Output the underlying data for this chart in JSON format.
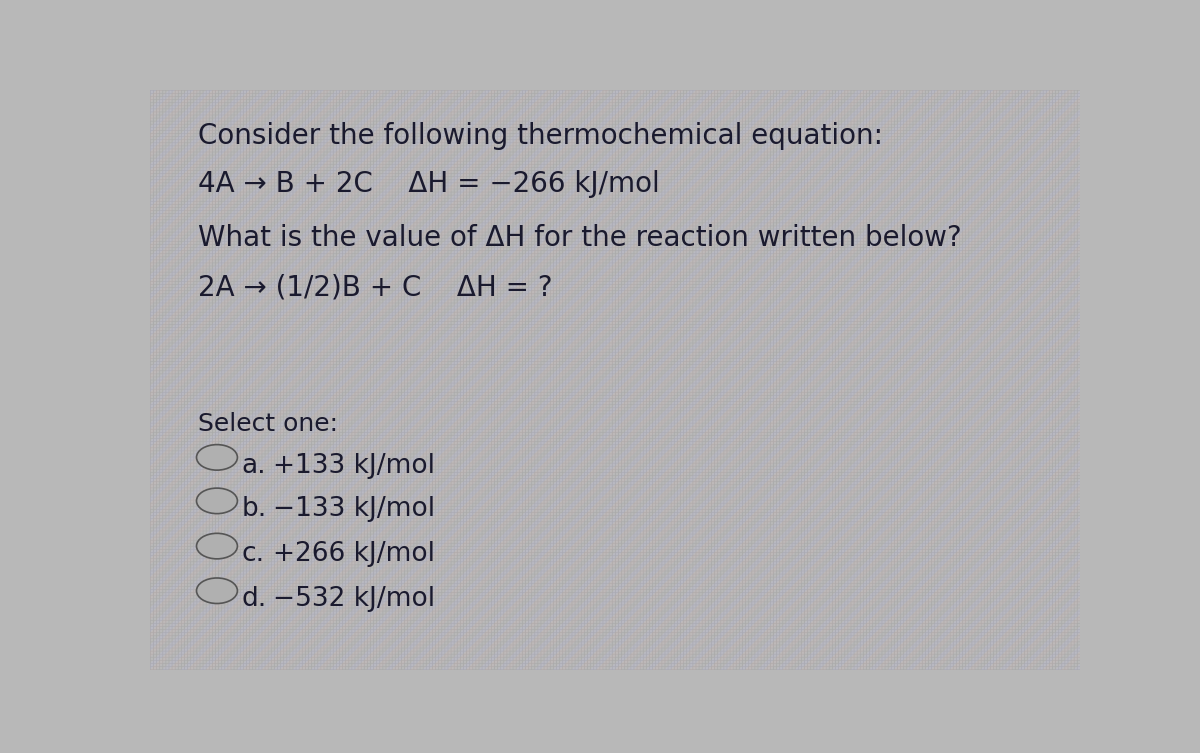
{
  "background_color": "#b8b8b8",
  "title_line": "Consider the following thermochemical equation:",
  "equation_line": "4A → B + 2C    ΔH = −266 kJ/mol",
  "question_line": "What is the value of ΔH for the reaction written below?",
  "reaction_line": "2A → (1/2)B + C    ΔH = ?",
  "select_label": "Select one:",
  "options": [
    "+133 kJ/mol",
    "−133 kJ/mol",
    "+266 kJ/mol",
    "−532 kJ/mol"
  ],
  "option_labels": [
    "a.",
    "b.",
    "c.",
    "d."
  ],
  "text_color": "#1a1a2e",
  "font_size_main": 20,
  "font_size_options": 19,
  "radio_color": "#909090",
  "radio_fill": "#b0b0b0",
  "grid_color_light": "#c8c8c8",
  "grid_color_dark": "#a8a8b0",
  "stripe_colors": [
    "#b5c0c8",
    "#c0b8a8",
    "#b8b8b8"
  ]
}
